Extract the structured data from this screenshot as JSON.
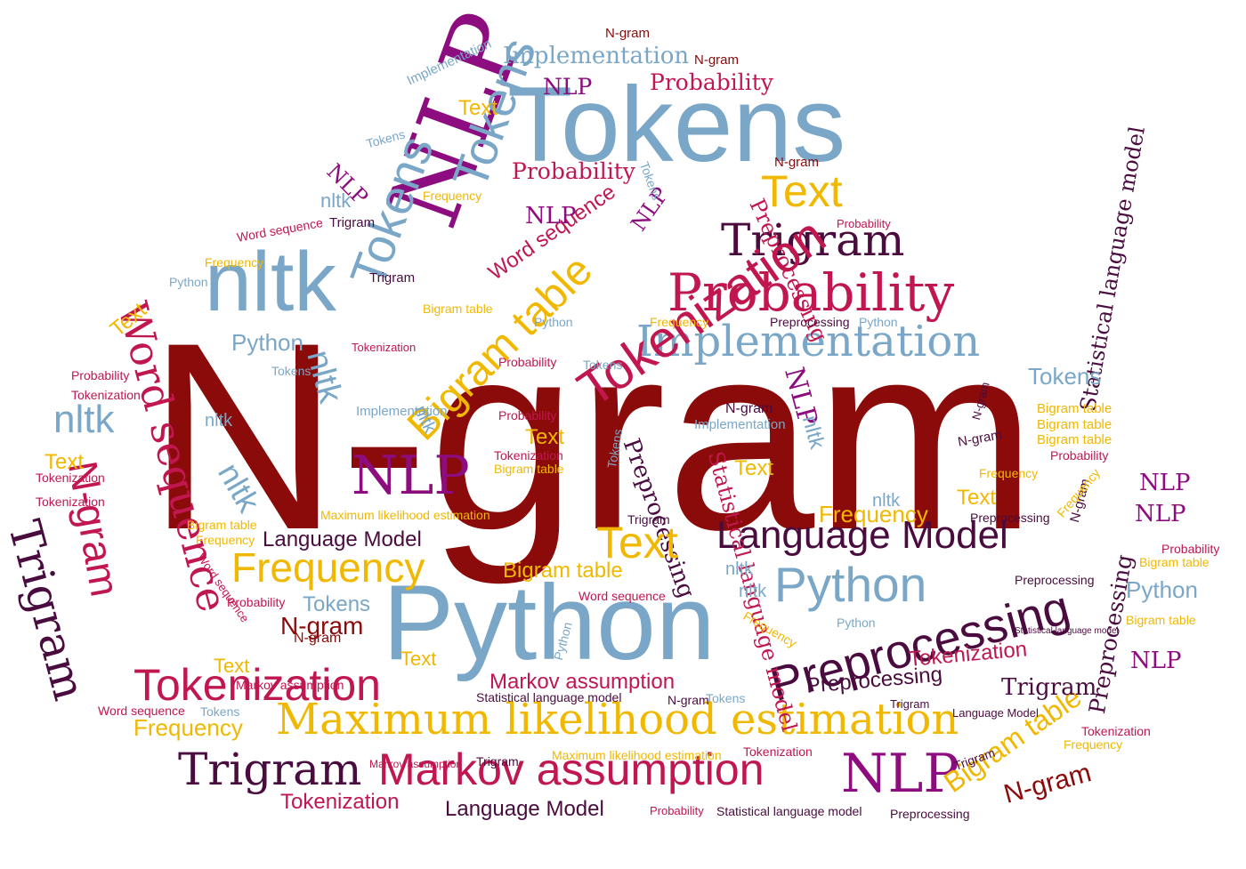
{
  "colors": {
    "dark_red": "#8b0a0a",
    "crimson": "#c0174f",
    "purple": "#8d0c7f",
    "dark_purple": "#4a0c3f",
    "light_blue": "#7aa7c7",
    "gold": "#f0b800"
  },
  "words": [
    "N-gram",
    "Tokens",
    "NLP",
    "Python",
    "nltk",
    "Implementation",
    "Probability",
    "Trigram",
    "Tokenization",
    "Text",
    "Bigram table",
    "Language Model",
    "Preprocessing",
    "Word sequence",
    "Maximum likelihood estimation",
    "Markov assumption",
    "Statistical language model",
    "Frequency"
  ]
}
